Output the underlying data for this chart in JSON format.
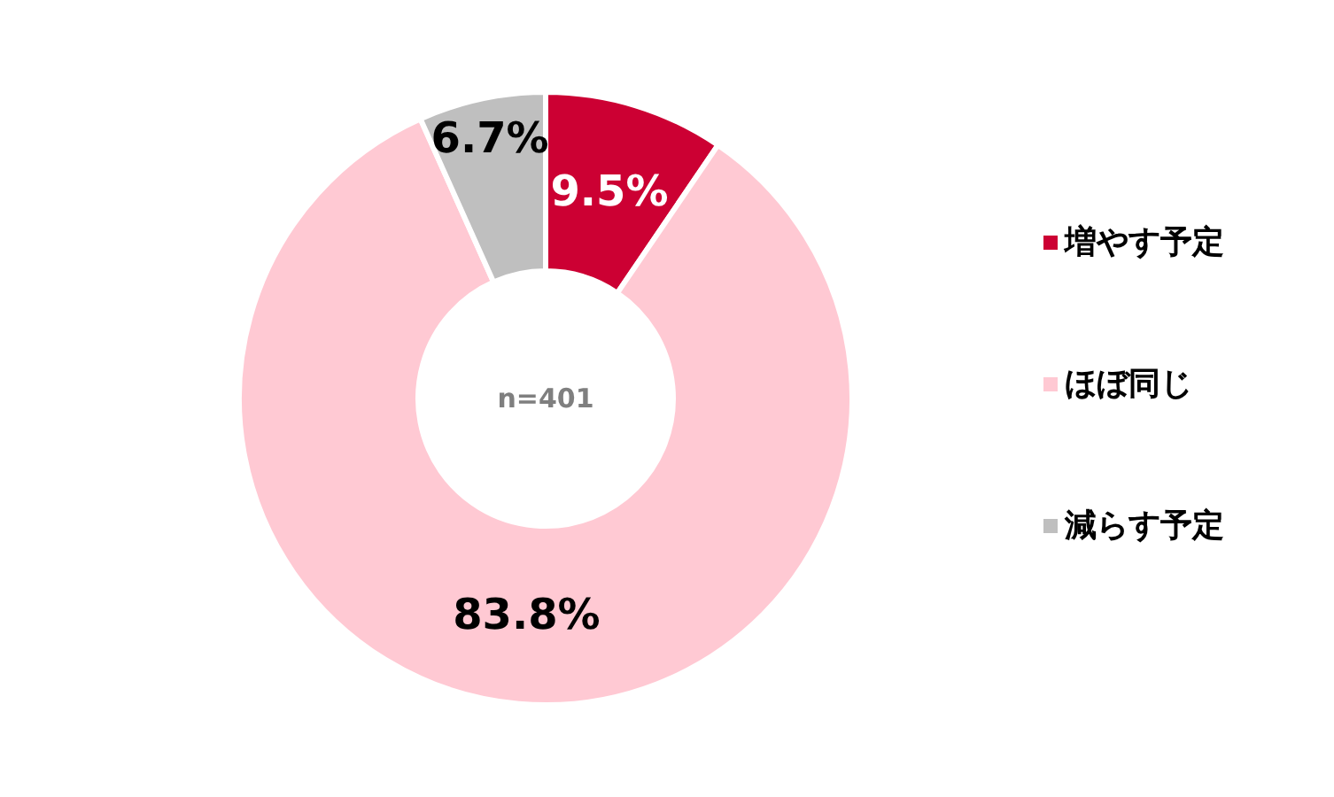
{
  "chart_data": {
    "type": "donut",
    "categories": [
      "増やす予定",
      "ほぼ同じ",
      "減らす予定"
    ],
    "values": [
      9.5,
      83.8,
      6.7
    ],
    "colors": [
      "#cc0033",
      "#ffc9d3",
      "#bfbfbf"
    ],
    "value_labels": [
      "9.5%",
      "83.8%",
      "6.7%"
    ],
    "annotations": [
      "n=401"
    ],
    "legend": "right"
  }
}
